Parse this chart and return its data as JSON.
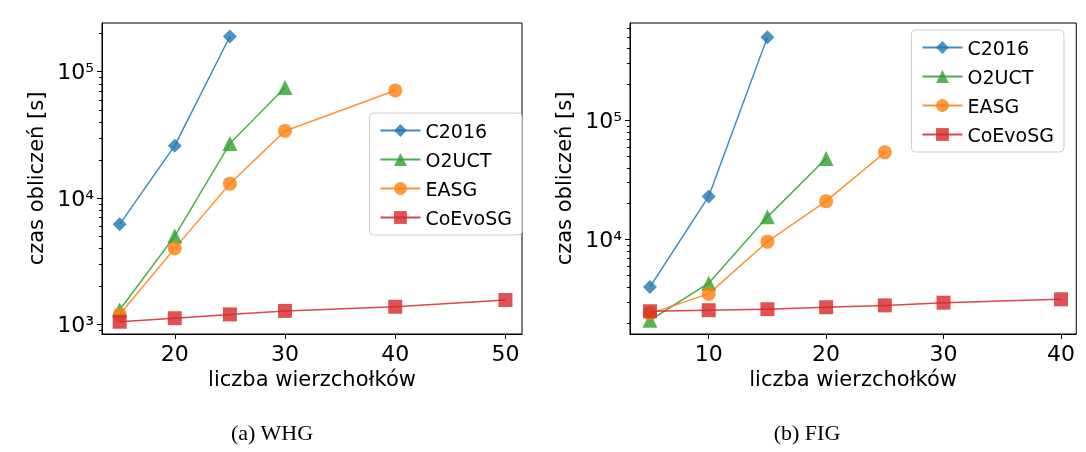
{
  "chart_data": [
    {
      "type": "line",
      "title": "(a) WHG",
      "xlabel": "liczba wierzchołków",
      "ylabel": "czas obliczeń [s]",
      "log": "y",
      "xlim": [
        13.4,
        51.5
      ],
      "xticks": [
        20,
        30,
        40,
        50
      ],
      "ylim": [
        840,
        243000
      ],
      "yticks": [
        {
          "value": 1000,
          "label": "10³"
        },
        {
          "value": 10000,
          "label": "10⁴"
        },
        {
          "value": 100000,
          "label": "10⁵"
        }
      ],
      "legend": "right",
      "grid": false,
      "series": [
        {
          "name": "C2016",
          "color": "#1f77b4",
          "marker": "diamond",
          "x": [
            15,
            20,
            25
          ],
          "values": [
            6200,
            26000,
            190000
          ]
        },
        {
          "name": "O2UCT",
          "color": "#2ca02c",
          "marker": "triangle",
          "x": [
            15,
            20,
            25,
            30
          ],
          "values": [
            1300,
            5000,
            27000,
            75000
          ]
        },
        {
          "name": "EASG",
          "color": "#ff7f0e",
          "marker": "circle",
          "x": [
            15,
            20,
            25,
            30,
            40
          ],
          "values": [
            1200,
            4000,
            13000,
            34000,
            71000
          ]
        },
        {
          "name": "CoEvoSG",
          "color": "#d62728",
          "marker": "square",
          "x": [
            15,
            20,
            25,
            30,
            40,
            50
          ],
          "values": [
            1050,
            1120,
            1200,
            1280,
            1380,
            1560
          ]
        }
      ]
    },
    {
      "type": "line",
      "title": "(b) FIG",
      "xlabel": "liczba wierzchołków",
      "ylabel": "czas obliczeń [s]",
      "log": "y",
      "xlim": [
        3.3,
        41.3
      ],
      "xticks": [
        10,
        20,
        30,
        40
      ],
      "ylim": [
        1610,
        658000
      ],
      "yticks": [
        {
          "value": 10000,
          "label": "10⁴"
        },
        {
          "value": 100000,
          "label": "10⁵"
        }
      ],
      "legend": "top right",
      "grid": false,
      "series": [
        {
          "name": "C2016",
          "color": "#1f77b4",
          "marker": "diamond",
          "x": [
            5,
            10,
            15
          ],
          "values": [
            4000,
            23000,
            500000
          ]
        },
        {
          "name": "O2UCT",
          "color": "#2ca02c",
          "marker": "triangle",
          "x": [
            5,
            10,
            15,
            20
          ],
          "values": [
            2100,
            4300,
            15500,
            48000
          ]
        },
        {
          "name": "EASG",
          "color": "#ff7f0e",
          "marker": "circle",
          "x": [
            5,
            10,
            15,
            20,
            25
          ],
          "values": [
            2400,
            3500,
            9600,
            21000,
            54000
          ]
        },
        {
          "name": "CoEvoSG",
          "color": "#d62728",
          "marker": "square",
          "x": [
            5,
            10,
            15,
            20,
            25,
            30,
            40
          ],
          "values": [
            2500,
            2550,
            2600,
            2700,
            2800,
            2950,
            3150
          ]
        }
      ]
    }
  ]
}
